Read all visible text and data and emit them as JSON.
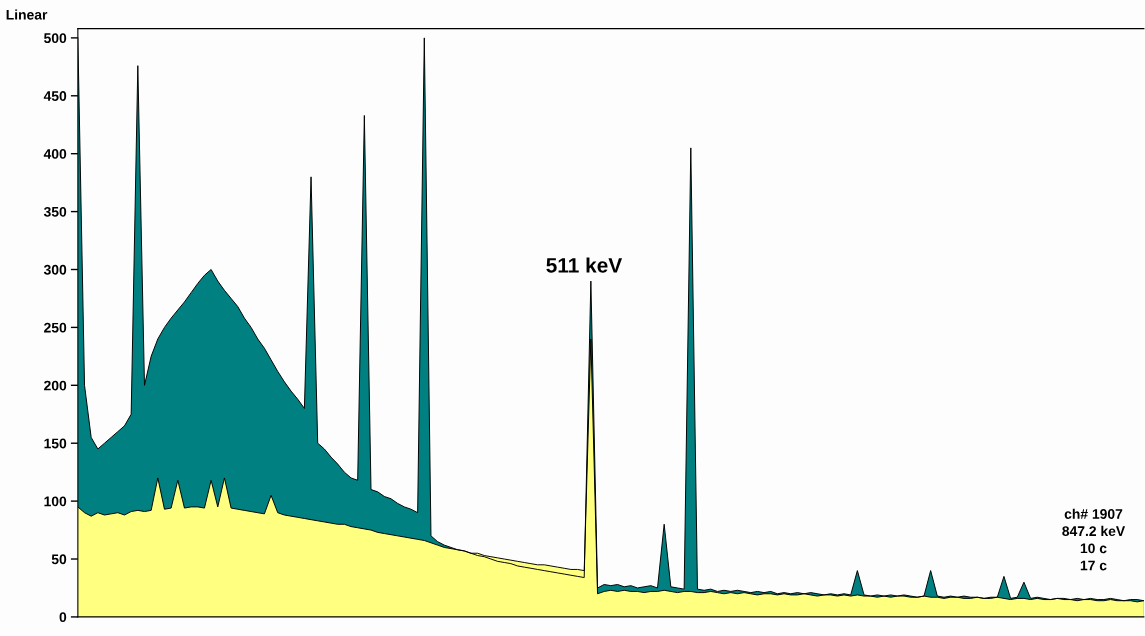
{
  "chart_data": {
    "type": "area",
    "categories": [
      null,
      null,
      null,
      null,
      null,
      null,
      null,
      null,
      null,
      null,
      null,
      null,
      null,
      null,
      null,
      null,
      null,
      null,
      null,
      null,
      null,
      null,
      null,
      null,
      null,
      null,
      null,
      null,
      null,
      null,
      null,
      null,
      null,
      null,
      null,
      null,
      null,
      null,
      null,
      null,
      null,
      null,
      null,
      null,
      null,
      null,
      null,
      null,
      null,
      null,
      null,
      null,
      null,
      null,
      null,
      null,
      null,
      null,
      null,
      null,
      null,
      null,
      null,
      null,
      null,
      null,
      null,
      null,
      null,
      null,
      null,
      null,
      null,
      null,
      null,
      null,
      null,
      null,
      null,
      null,
      null,
      null,
      null,
      null,
      null,
      null,
      null,
      null,
      null,
      null,
      null,
      null,
      null,
      null,
      null,
      null,
      null,
      null,
      null,
      null,
      null,
      null,
      null,
      null,
      null,
      null,
      null,
      null,
      null,
      null,
      null,
      null,
      null,
      null,
      null,
      null,
      null,
      null,
      null,
      null,
      null,
      null,
      null,
      null,
      null,
      null,
      null,
      null,
      null,
      null,
      null,
      null,
      null,
      null,
      null,
      null,
      null,
      null,
      null,
      null,
      null,
      null,
      null,
      null,
      null,
      null,
      null,
      null,
      null,
      null,
      null,
      null,
      null,
      null,
      null,
      null,
      null,
      null,
      null,
      null,
      null
    ],
    "series": [
      {
        "color": "#008080",
        "values": [
          500,
          200,
          155,
          145,
          150,
          155,
          160,
          165,
          175,
          476,
          200,
          225,
          240,
          250,
          258,
          265,
          272,
          280,
          288,
          295,
          300,
          290,
          282,
          275,
          268,
          258,
          250,
          240,
          232,
          222,
          212,
          203,
          195,
          188,
          180,
          380,
          150,
          145,
          138,
          132,
          125,
          120,
          118,
          433,
          110,
          108,
          104,
          102,
          98,
          95,
          93,
          90,
          500,
          70,
          65,
          62,
          60,
          58,
          57,
          55,
          53,
          52,
          50,
          48,
          47,
          46,
          44,
          43,
          42,
          41,
          40,
          39,
          38,
          37,
          36,
          35,
          34,
          290,
          25,
          28,
          27,
          28,
          26,
          27,
          25,
          26,
          27,
          25,
          80,
          26,
          25,
          24,
          405,
          24,
          23,
          24,
          22,
          23,
          22,
          23,
          22,
          21,
          22,
          21,
          22,
          20,
          21,
          20,
          21,
          20,
          21,
          20,
          19,
          20,
          19,
          20,
          19,
          40,
          19,
          18,
          19,
          18,
          19,
          18,
          19,
          18,
          17,
          18,
          40,
          18,
          17,
          18,
          17,
          18,
          17,
          17,
          16,
          17,
          17,
          35,
          16,
          17,
          30,
          16,
          17,
          16,
          15,
          16,
          16,
          15,
          16,
          15,
          16,
          15,
          15,
          16,
          15,
          14,
          15,
          15,
          14
        ]
      },
      {
        "color": "#ffff80",
        "values": [
          95,
          90,
          87,
          90,
          88,
          89,
          90,
          88,
          91,
          92,
          91,
          92,
          120,
          93,
          94,
          118,
          94,
          95,
          95,
          94,
          118,
          95,
          120,
          94,
          93,
          92,
          91,
          90,
          89,
          105,
          90,
          88,
          87,
          86,
          85,
          84,
          83,
          82,
          81,
          80,
          80,
          78,
          77,
          76,
          75,
          73,
          72,
          71,
          70,
          69,
          68,
          67,
          66,
          64,
          62,
          60,
          59,
          58,
          57,
          55,
          55,
          53,
          52,
          51,
          50,
          49,
          48,
          47,
          46,
          45,
          45,
          44,
          43,
          42,
          41,
          41,
          40,
          240,
          20,
          22,
          23,
          22,
          23,
          22,
          22,
          21,
          22,
          22,
          23,
          22,
          21,
          22,
          22,
          21,
          21,
          22,
          21,
          20,
          21,
          20,
          21,
          20,
          19,
          20,
          20,
          19,
          20,
          19,
          19,
          20,
          19,
          18,
          19,
          19,
          18,
          19,
          18,
          19,
          18,
          18,
          17,
          18,
          17,
          18,
          18,
          17,
          17,
          18,
          17,
          17,
          16,
          17,
          17,
          16,
          16,
          17,
          16,
          16,
          17,
          16,
          15,
          16,
          16,
          15,
          16,
          15,
          15,
          16,
          15,
          15,
          14,
          15,
          15,
          14,
          14,
          15,
          14,
          14,
          14,
          13,
          14
        ]
      }
    ],
    "ylim": [
      0,
      508
    ],
    "yticks": [
      0,
      50,
      100,
      150,
      200,
      250,
      300,
      350,
      400,
      450,
      500
    ],
    "grid": false,
    "legend": false,
    "annotations": [
      "Linear",
      "511 keV",
      "ch# 1907",
      "847.2 keV",
      "10 c",
      "17 c"
    ]
  }
}
